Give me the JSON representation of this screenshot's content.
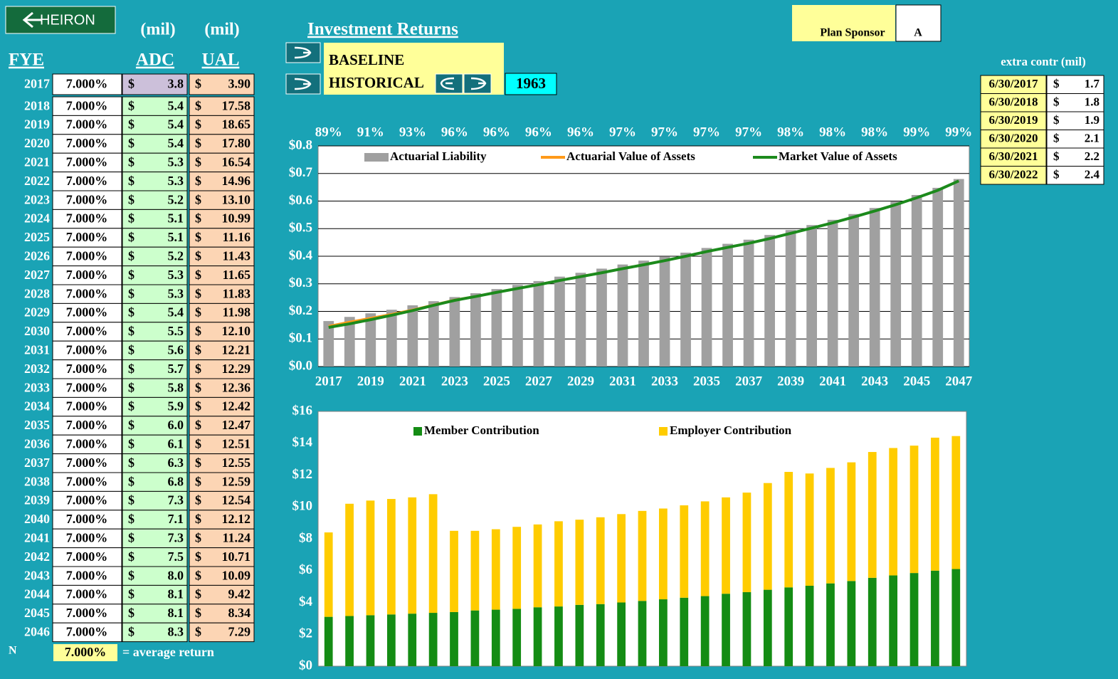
{
  "logo": "HEIRON",
  "header": {
    "unit_adc": "(mil)",
    "unit_ual": "(mil)",
    "fye": "FYE",
    "adc": "ADC",
    "ual": "UAL",
    "title": "Investment Returns",
    "baseline": "BASELINE",
    "historical": "HISTORICAL",
    "start_year": "1963",
    "plan_sponsor_label": "Plan Sponsor",
    "plan_sponsor": "A"
  },
  "table": {
    "currency": "$",
    "rows": [
      [
        "2017",
        "7.000%",
        "3.8",
        "3.90"
      ],
      [
        "2018",
        "7.000%",
        "5.4",
        "17.58"
      ],
      [
        "2019",
        "7.000%",
        "5.4",
        "18.65"
      ],
      [
        "2020",
        "7.000%",
        "5.4",
        "17.80"
      ],
      [
        "2021",
        "7.000%",
        "5.3",
        "16.54"
      ],
      [
        "2022",
        "7.000%",
        "5.3",
        "14.96"
      ],
      [
        "2023",
        "7.000%",
        "5.2",
        "13.10"
      ],
      [
        "2024",
        "7.000%",
        "5.1",
        "10.99"
      ],
      [
        "2025",
        "7.000%",
        "5.1",
        "11.16"
      ],
      [
        "2026",
        "7.000%",
        "5.2",
        "11.43"
      ],
      [
        "2027",
        "7.000%",
        "5.3",
        "11.65"
      ],
      [
        "2028",
        "7.000%",
        "5.3",
        "11.83"
      ],
      [
        "2029",
        "7.000%",
        "5.4",
        "11.98"
      ],
      [
        "2030",
        "7.000%",
        "5.5",
        "12.10"
      ],
      [
        "2031",
        "7.000%",
        "5.6",
        "12.21"
      ],
      [
        "2032",
        "7.000%",
        "5.7",
        "12.29"
      ],
      [
        "2033",
        "7.000%",
        "5.8",
        "12.36"
      ],
      [
        "2034",
        "7.000%",
        "5.9",
        "12.42"
      ],
      [
        "2035",
        "7.000%",
        "6.0",
        "12.47"
      ],
      [
        "2036",
        "7.000%",
        "6.1",
        "12.51"
      ],
      [
        "2037",
        "7.000%",
        "6.3",
        "12.55"
      ],
      [
        "2038",
        "7.000%",
        "6.8",
        "12.59"
      ],
      [
        "2039",
        "7.000%",
        "7.3",
        "12.54"
      ],
      [
        "2040",
        "7.000%",
        "7.1",
        "12.12"
      ],
      [
        "2041",
        "7.000%",
        "7.3",
        "11.24"
      ],
      [
        "2042",
        "7.000%",
        "7.5",
        "10.71"
      ],
      [
        "2043",
        "7.000%",
        "8.0",
        "10.09"
      ],
      [
        "2044",
        "7.000%",
        "8.1",
        "9.42"
      ],
      [
        "2045",
        "7.000%",
        "8.1",
        "8.34"
      ],
      [
        "2046",
        "7.000%",
        "8.3",
        "7.29"
      ]
    ],
    "footer": {
      "n": "N",
      "average": "7.000%",
      "average_label": "= average return"
    }
  },
  "extra": {
    "title": "extra contr (mil)",
    "rows": [
      [
        "6/30/2017",
        "1.7"
      ],
      [
        "6/30/2018",
        "1.8"
      ],
      [
        "6/30/2019",
        "1.9"
      ],
      [
        "6/30/2020",
        "2.1"
      ],
      [
        "6/30/2021",
        "2.2"
      ],
      [
        "6/30/2022",
        "2.4"
      ]
    ]
  },
  "chart_data": [
    {
      "type": "bar_line",
      "categories": [
        "2017",
        null,
        "2019",
        null,
        "2021",
        null,
        "2023",
        null,
        "2025",
        null,
        "2027",
        null,
        "2029",
        null,
        "2031",
        null,
        "2033",
        null,
        "2035",
        null,
        "2037",
        null,
        "2039",
        null,
        "2041",
        null,
        "2043",
        null,
        "2045",
        null,
        "2047"
      ],
      "annotations": [
        "89%",
        "91%",
        "93%",
        "96%",
        "96%",
        "96%",
        "96%",
        "97%",
        "97%",
        "97%",
        "97%",
        "98%",
        "98%",
        "98%",
        "99%",
        "99%"
      ],
      "series": [
        {
          "name": "Actuarial Liability",
          "kind": "bar",
          "color": "#a0a0a0",
          "values": [
            0.165,
            0.18,
            0.193,
            0.206,
            0.222,
            0.237,
            0.252,
            0.266,
            0.281,
            0.296,
            0.31,
            0.326,
            0.34,
            0.355,
            0.37,
            0.384,
            0.398,
            0.413,
            0.43,
            0.445,
            0.46,
            0.477,
            0.495,
            0.513,
            0.532,
            0.553,
            0.575,
            0.598,
            0.622,
            0.648,
            0.68
          ]
        },
        {
          "name": "Actuarial Value of Assets",
          "kind": "line",
          "color": "#ff9a1a",
          "values": [
            0.147,
            0.162,
            0.176,
            0.19,
            0.206,
            0.224,
            0.242,
            0.255,
            0.27,
            0.284,
            0.298,
            0.313,
            0.327,
            0.341,
            0.356,
            0.37,
            0.385,
            0.4,
            0.417,
            0.432,
            0.447,
            0.464,
            0.483,
            0.502,
            0.521,
            0.542,
            0.564,
            0.587,
            0.612,
            0.639,
            0.673
          ]
        },
        {
          "name": "Market Value of Assets",
          "kind": "line",
          "color": "#1c8a1c",
          "values": [
            0.142,
            0.155,
            0.17,
            0.186,
            0.203,
            0.222,
            0.24,
            0.254,
            0.269,
            0.283,
            0.297,
            0.312,
            0.326,
            0.34,
            0.355,
            0.369,
            0.384,
            0.4,
            0.417,
            0.432,
            0.447,
            0.464,
            0.483,
            0.502,
            0.521,
            0.542,
            0.564,
            0.587,
            0.612,
            0.639,
            0.673
          ]
        }
      ],
      "ylim": [
        0,
        0.8
      ],
      "yticks": [
        {
          "value": 0,
          "label": "$0.0"
        },
        {
          "value": 0.1,
          "label": "$0.1"
        },
        {
          "value": 0.2,
          "label": "$0.2"
        },
        {
          "value": 0.3,
          "label": "$0.3"
        },
        {
          "value": 0.4,
          "label": "$0.4"
        },
        {
          "value": 0.5,
          "label": "$0.5"
        },
        {
          "value": 0.6,
          "label": "$0.6"
        },
        {
          "value": 0.7,
          "label": "$0.7"
        },
        {
          "value": 0.8,
          "label": "$0.8"
        }
      ],
      "grid": true,
      "legend": "top"
    },
    {
      "type": "stacked_bar",
      "series": [
        {
          "name": "Member Contribution",
          "color": "#148c14",
          "values": [
            3.1,
            3.15,
            3.2,
            3.25,
            3.3,
            3.35,
            3.4,
            3.5,
            3.55,
            3.6,
            3.7,
            3.75,
            3.85,
            3.9,
            4.0,
            4.1,
            4.2,
            4.3,
            4.4,
            4.55,
            4.65,
            4.8,
            4.95,
            5.05,
            5.2,
            5.35,
            5.55,
            5.7,
            5.85,
            6.0,
            6.1
          ]
        },
        {
          "name": "Employer Contribution",
          "color": "#ffcc00",
          "values": [
            5.3,
            7.05,
            7.2,
            7.25,
            7.3,
            7.45,
            5.1,
            5.0,
            5.05,
            5.15,
            5.2,
            5.35,
            5.35,
            5.45,
            5.55,
            5.65,
            5.7,
            5.8,
            5.95,
            6.05,
            6.25,
            6.7,
            7.25,
            7.05,
            7.25,
            7.45,
            7.9,
            8.0,
            8.0,
            8.35,
            8.35
          ]
        }
      ],
      "ylim": [
        0,
        16
      ],
      "yticks": [
        {
          "value": 0,
          "label": "$0"
        },
        {
          "value": 2,
          "label": "$2"
        },
        {
          "value": 4,
          "label": "$4"
        },
        {
          "value": 6,
          "label": "$6"
        },
        {
          "value": 8,
          "label": "$8"
        },
        {
          "value": 10,
          "label": "$10"
        },
        {
          "value": 12,
          "label": "$12"
        },
        {
          "value": 14,
          "label": "$14"
        },
        {
          "value": 16,
          "label": "$16"
        }
      ],
      "grid": false,
      "legend": "top"
    }
  ]
}
